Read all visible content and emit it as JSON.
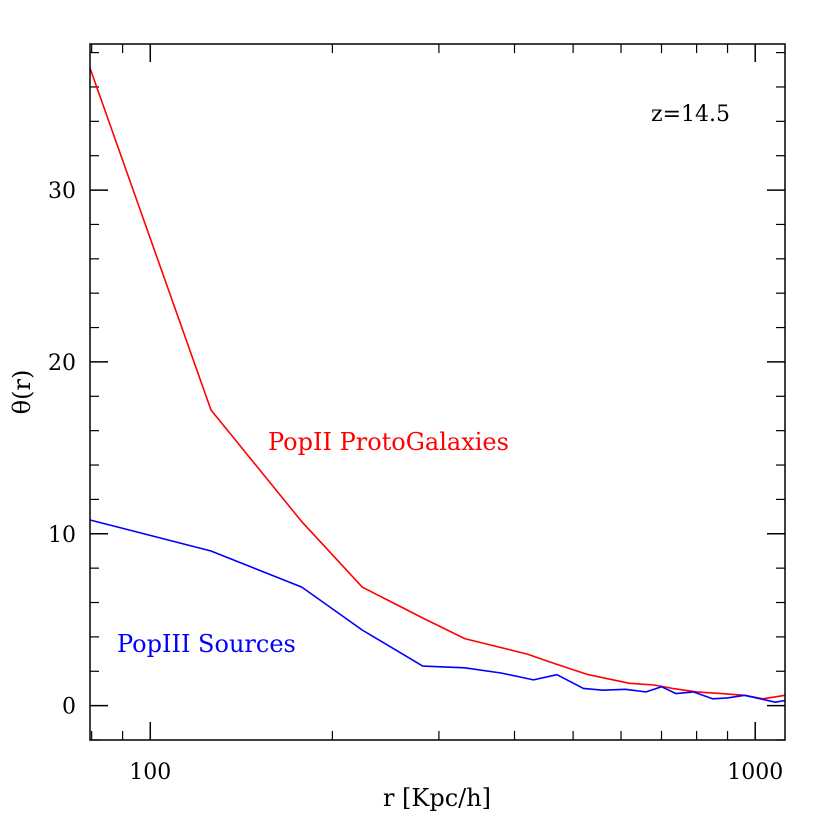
{
  "chart_data": {
    "type": "line",
    "xlabel": "r [Kpc/h]",
    "ylabel": "θ(r)",
    "x_scale": "log",
    "xlim": [
      79.5,
      1120
    ],
    "ylim": [
      -2,
      38.5
    ],
    "grid": false,
    "x_major_ticks": [
      100,
      1000
    ],
    "x_tick_labels": [
      "100",
      "1000"
    ],
    "x_minor_ticks": [
      80,
      90,
      200,
      300,
      400,
      500,
      600,
      700,
      800,
      900
    ],
    "y_major_ticks": [
      0,
      10,
      20,
      30
    ],
    "y_tick_labels": [
      "0",
      "10",
      "20",
      "30"
    ],
    "annotation": "z=14.5",
    "series": [
      {
        "label": "PopII ProtoGalaxies",
        "color": "#ff0000",
        "x": [
          79.5,
          126,
          178,
          224,
          282,
          331,
          420,
          470,
          530,
          620,
          680,
          730,
          800,
          880,
          960,
          1030,
          1120
        ],
        "y": [
          37.1,
          17.2,
          10.7,
          6.9,
          5.1,
          3.9,
          3.0,
          2.4,
          1.8,
          1.3,
          1.2,
          1.0,
          0.8,
          0.7,
          0.6,
          0.4,
          0.6
        ]
      },
      {
        "label": "PopIII Sources",
        "color": "#0000ff",
        "x": [
          79.5,
          126,
          178,
          224,
          282,
          331,
          380,
          430,
          470,
          520,
          560,
          610,
          660,
          700,
          740,
          790,
          850,
          900,
          960,
          1020,
          1080,
          1120
        ],
        "y": [
          10.8,
          9.0,
          6.9,
          4.4,
          2.3,
          2.2,
          1.9,
          1.5,
          1.8,
          1.0,
          0.9,
          0.95,
          0.8,
          1.1,
          0.7,
          0.8,
          0.4,
          0.45,
          0.6,
          0.4,
          0.2,
          0.3
        ]
      }
    ]
  }
}
